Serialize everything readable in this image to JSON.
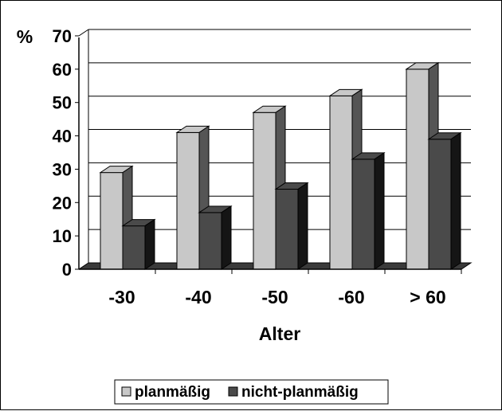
{
  "chart_data": {
    "type": "bar",
    "categories": [
      "-30",
      "-40",
      "-50",
      "-60",
      "> 60"
    ],
    "series": [
      {
        "name": "planmäßig",
        "values": [
          29,
          41,
          47,
          52,
          60
        ],
        "color": "#c8c8c8"
      },
      {
        "name": "nicht-planmäßig",
        "values": [
          13,
          17,
          24,
          33,
          39
        ],
        "color": "#4a4a4a"
      }
    ],
    "title": "",
    "xlabel": "Alter",
    "ylabel": "%",
    "ylim": [
      0,
      70
    ],
    "yticks": [
      "0",
      "10",
      "20",
      "30",
      "40",
      "50",
      "60",
      "70"
    ],
    "grid": true,
    "style": "3d-clustered-column",
    "legend_position": "bottom"
  }
}
